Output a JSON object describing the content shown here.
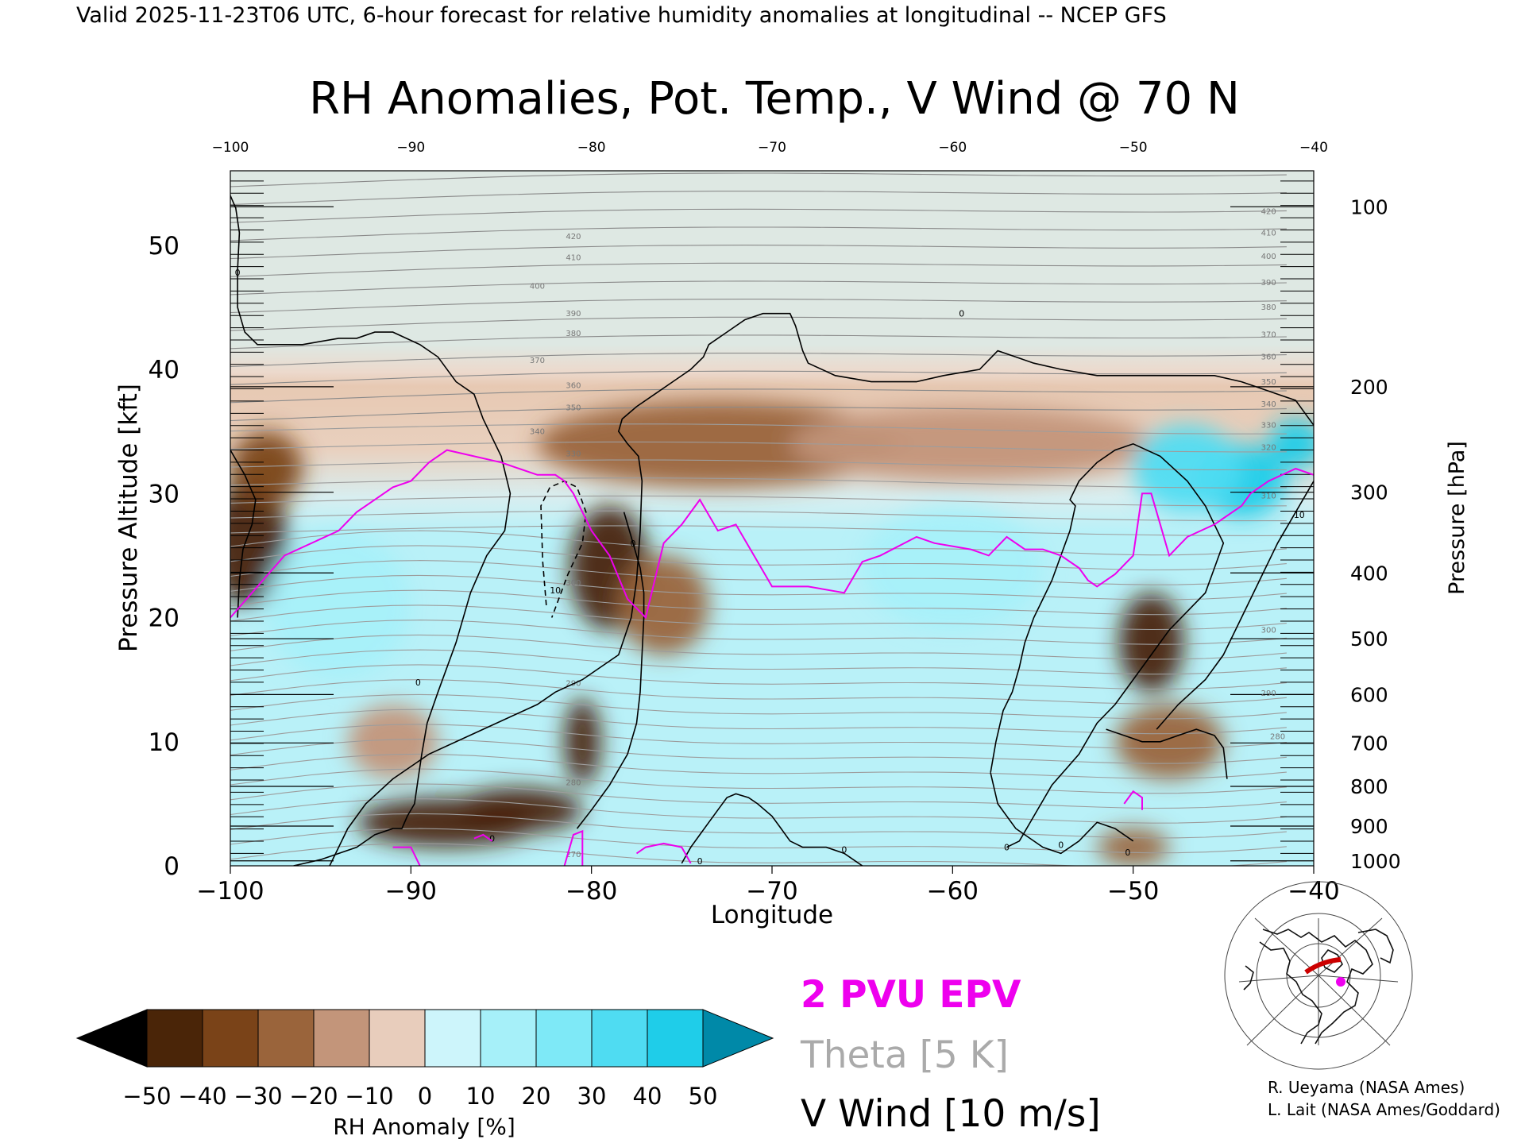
{
  "header": {
    "valid_line": "Valid 2025-11-23T06 UTC, 6-hour forecast for relative humidity anomalies at longitudinal -- NCEP GFS"
  },
  "chart_data": {
    "type": "heatmap",
    "title": "RH Anomalies, Pot. Temp., V Wind @ 70 N",
    "xlabel": "Longitude",
    "ylabel": "Pressure Altitude [kft]",
    "y2label": "Pressure [hPa]",
    "xlim": [
      -100,
      -40
    ],
    "ylim": [
      0,
      56
    ],
    "x_ticks": [
      -100,
      -90,
      -80,
      -70,
      -60,
      -50,
      -40
    ],
    "y_ticks": [
      0,
      10,
      20,
      30,
      40,
      50
    ],
    "pressure_ticks": [
      {
        "label": "100",
        "kft": 53.1
      },
      {
        "label": "200",
        "kft": 38.6
      },
      {
        "label": "300",
        "kft": 30.1
      },
      {
        "label": "400",
        "kft": 23.6
      },
      {
        "label": "500",
        "kft": 18.3
      },
      {
        "label": "600",
        "kft": 13.8
      },
      {
        "label": "700",
        "kft": 9.9
      },
      {
        "label": "800",
        "kft": 6.4
      },
      {
        "label": "900",
        "kft": 3.2
      },
      {
        "label": "1000",
        "kft": 0.4
      }
    ],
    "rh_blobs": [
      {
        "x": -99,
        "y": 26,
        "rx": 2.2,
        "ry": 5,
        "val": -50
      },
      {
        "x": -98,
        "y": 32,
        "rx": 2.0,
        "ry": 3,
        "val": -35
      },
      {
        "x": -88,
        "y": 3.5,
        "rx": 5.0,
        "ry": 2.0,
        "val": -50
      },
      {
        "x": -84,
        "y": 4.5,
        "rx": 3.5,
        "ry": 1.8,
        "val": -45
      },
      {
        "x": -80.5,
        "y": 10,
        "rx": 1.0,
        "ry": 3.5,
        "val": -50
      },
      {
        "x": -91,
        "y": 10,
        "rx": 2.5,
        "ry": 3.0,
        "val": -20
      },
      {
        "x": -79,
        "y": 24,
        "rx": 2.2,
        "ry": 5.0,
        "val": -45
      },
      {
        "x": -76,
        "y": 21,
        "rx": 2.5,
        "ry": 4.0,
        "val": -25
      },
      {
        "x": -73,
        "y": 34,
        "rx": 10,
        "ry": 3.5,
        "val": -25
      },
      {
        "x": -59,
        "y": 34,
        "rx": 10,
        "ry": 3.0,
        "val": -20
      },
      {
        "x": -49,
        "y": 18,
        "rx": 1.8,
        "ry": 4.0,
        "val": -50
      },
      {
        "x": -48,
        "y": 10,
        "rx": 3.0,
        "ry": 3.0,
        "val": -25
      },
      {
        "x": -50,
        "y": 1.5,
        "rx": 2.0,
        "ry": 1.5,
        "val": -25
      },
      {
        "x": -44,
        "y": 31,
        "rx": 2.5,
        "ry": 3.0,
        "val": 50
      },
      {
        "x": -47,
        "y": 32,
        "rx": 3.0,
        "ry": 3.5,
        "val": 35
      },
      {
        "x": -41,
        "y": 34,
        "rx": 1.5,
        "ry": 2.0,
        "val": 45
      },
      {
        "x": -60,
        "y": 24,
        "rx": 5.0,
        "ry": 5.0,
        "val": 15
      },
      {
        "x": -94,
        "y": 21,
        "rx": 4.0,
        "ry": 6.0,
        "val": 10
      }
    ],
    "theta_labels": [
      {
        "text": "420",
        "x": -81,
        "y": 50.5
      },
      {
        "text": "410",
        "x": -81,
        "y": 48.8
      },
      {
        "text": "400",
        "x": -83,
        "y": 46.5
      },
      {
        "text": "390",
        "x": -81,
        "y": 44.3
      },
      {
        "text": "380",
        "x": -81,
        "y": 42.7
      },
      {
        "text": "370",
        "x": -83,
        "y": 40.5
      },
      {
        "text": "360",
        "x": -81,
        "y": 38.5
      },
      {
        "text": "350",
        "x": -81,
        "y": 36.7
      },
      {
        "text": "340",
        "x": -83,
        "y": 34.8
      },
      {
        "text": "330",
        "x": -81,
        "y": 33.0
      },
      {
        "text": "300",
        "x": -81,
        "y": 22.6
      },
      {
        "text": "290",
        "x": -81,
        "y": 14.5
      },
      {
        "text": "420",
        "x": -42.5,
        "y": 52.5
      },
      {
        "text": "410",
        "x": -42.5,
        "y": 50.8
      },
      {
        "text": "400",
        "x": -42.5,
        "y": 48.9
      },
      {
        "text": "390",
        "x": -42.5,
        "y": 46.8
      },
      {
        "text": "380",
        "x": -42.5,
        "y": 44.8
      },
      {
        "text": "370",
        "x": -42.5,
        "y": 42.6
      },
      {
        "text": "360",
        "x": -42.5,
        "y": 40.8
      },
      {
        "text": "350",
        "x": -42.5,
        "y": 38.8
      },
      {
        "text": "340",
        "x": -42.5,
        "y": 37.0
      },
      {
        "text": "330",
        "x": -42.5,
        "y": 35.3
      },
      {
        "text": "320",
        "x": -42.5,
        "y": 33.5
      },
      {
        "text": "310",
        "x": -42.5,
        "y": 29.6
      },
      {
        "text": "300",
        "x": -42.5,
        "y": 18.8
      },
      {
        "text": "290",
        "x": -42.5,
        "y": 13.7
      },
      {
        "text": "280",
        "x": -42.0,
        "y": 10.2
      },
      {
        "text": "280",
        "x": -81,
        "y": 6.5
      },
      {
        "text": "270",
        "x": -81,
        "y": 0.7
      }
    ],
    "epv_2pvu": {
      "name": "2 PVU EPV",
      "color": "#ee00ee",
      "x": [
        -100,
        -97,
        -94,
        -93,
        -92,
        -91,
        -90,
        -89,
        -88,
        -85,
        -84,
        -83,
        -82,
        -81.5,
        -81,
        -80,
        -79,
        -78,
        -77,
        -76,
        -75,
        -74,
        -73,
        -72,
        -71,
        -70,
        -68,
        -66,
        -65,
        -64,
        -62,
        -61,
        -59,
        -58,
        -57,
        -56,
        -55,
        -54,
        -53,
        -52.5,
        -52,
        -51.5,
        -51,
        -50,
        -49.5,
        -49,
        -48.5,
        -48,
        -47,
        -45.5,
        -45,
        -44.5,
        -44,
        -43.5,
        -42.5,
        -41,
        -40
      ],
      "y": [
        20,
        25,
        27,
        28.5,
        29.5,
        30.5,
        31,
        32.5,
        33.5,
        32.5,
        32,
        31.5,
        31.5,
        31,
        30,
        27,
        25,
        21.5,
        20,
        26,
        27.5,
        29.5,
        27,
        27.5,
        25,
        22.5,
        22.5,
        22,
        24.5,
        25,
        26.5,
        26,
        25.5,
        25,
        26.5,
        25.5,
        25.5,
        25,
        24,
        23,
        22.5,
        23,
        23.5,
        25,
        30,
        30,
        27.5,
        25,
        26.5,
        27.5,
        28,
        28.5,
        29,
        30,
        31,
        32,
        31.5
      ]
    },
    "epv_2pvu_low": [
      {
        "x": [
          -91,
          -90.5,
          -90,
          -89.5
        ],
        "y": [
          1.5,
          1.5,
          1.5,
          0
        ]
      },
      {
        "x": [
          -86.5,
          -86,
          -85.5
        ],
        "y": [
          2.2,
          2.5,
          2.0
        ]
      },
      {
        "x": [
          -81.5,
          -81,
          -80.5,
          -80.5
        ],
        "y": [
          0,
          2.5,
          2.8,
          0
        ]
      },
      {
        "x": [
          -77.5,
          -77,
          -76,
          -75,
          -74.5
        ],
        "y": [
          1,
          1.5,
          1.8,
          1.5,
          0.2
        ]
      },
      {
        "x": [
          -50.5,
          -50,
          -49.5,
          -49.5
        ],
        "y": [
          5,
          6,
          5.5,
          4.5
        ]
      }
    ],
    "wind_contours": [
      {
        "style": "solid",
        "x": [
          -100,
          -99.7,
          -99.5,
          -99.6,
          -99.6,
          -99.2,
          -98.5,
          -97,
          -96,
          -94,
          -93,
          -92,
          -91,
          -89.5,
          -88.5,
          -87.5,
          -86.5,
          -86,
          -85,
          -84.5,
          -84.8,
          -85.8,
          -86.7,
          -87.5,
          -88.5,
          -89.1,
          -89.4,
          -89.6,
          -89.8,
          -90.2,
          -90.5,
          -91,
          -92,
          -93,
          -95,
          -96.5
        ],
        "y": [
          54,
          53,
          51,
          48,
          45,
          43,
          42,
          42,
          42,
          42.5,
          42.5,
          43,
          43,
          42,
          41,
          39,
          38,
          36,
          33,
          30,
          27,
          25,
          22,
          18,
          14,
          11.5,
          9,
          7,
          5,
          4,
          3,
          3,
          2.5,
          1.5,
          0.5,
          0
        ]
      },
      {
        "style": "solid",
        "x": [
          -100,
          -99.2,
          -98.6,
          -98.8,
          -99.3,
          -99.5,
          -99.6
        ],
        "y": [
          33.5,
          31.5,
          29.5,
          27.5,
          25.5,
          23,
          20
        ]
      },
      {
        "style": "solid",
        "x": [
          -94.5,
          -94,
          -93.5,
          -92.5,
          -91,
          -89,
          -86,
          -83,
          -82,
          -80.5,
          -79.5,
          -78.5,
          -77.8,
          -77.5,
          -77.3,
          -77.2,
          -77.4,
          -78,
          -78.5,
          -78.3,
          -77.5,
          -76.5,
          -75.5,
          -74.5,
          -73.8,
          -73.5,
          -72.5,
          -71.5,
          -70.5,
          -69.5,
          -69,
          -68.7,
          -68.5,
          -68.3,
          -68,
          -66.5,
          -64.5,
          -62,
          -60.5,
          -58.5,
          -57.5,
          -56.5,
          -55.5,
          -54,
          -52,
          -50,
          -48.5,
          -47,
          -45.5,
          -44,
          -43,
          -42,
          -41,
          -40.5,
          -40
        ],
        "y": [
          0,
          1.5,
          3,
          5,
          7,
          9,
          11,
          13,
          14,
          15,
          16,
          17,
          20,
          23,
          27,
          31,
          33,
          34,
          35,
          36,
          37,
          38,
          39,
          40,
          41,
          42,
          43,
          44,
          44.5,
          44.5,
          44.5,
          43.5,
          42.5,
          41.5,
          40.5,
          39.5,
          39,
          39,
          39.5,
          40,
          41.5,
          41,
          40.5,
          40,
          39.5,
          39.5,
          39.5,
          39.5,
          39.5,
          39,
          38.5,
          38,
          37.5,
          36.5,
          35.5
        ]
      },
      {
        "style": "solid",
        "x": [
          -80.8,
          -80,
          -79,
          -78,
          -77.5,
          -77.3,
          -77.2,
          -77.1,
          -77.1,
          -77.3,
          -77.8,
          -78.2
        ],
        "y": [
          3,
          4.5,
          6.5,
          9,
          11.5,
          14,
          17,
          20,
          22,
          24,
          26.5,
          28.5
        ]
      },
      {
        "style": "solid",
        "x": [
          -75,
          -74.5,
          -74,
          -73.5,
          -73,
          -72.5,
          -72,
          -71.3,
          -70.8,
          -70,
          -69.5,
          -69,
          -68.3,
          -67,
          -66,
          -65.5,
          -65
        ],
        "y": [
          0.2,
          1.5,
          2.5,
          3.5,
          4.5,
          5.5,
          5.8,
          5.5,
          5,
          4,
          3,
          2,
          1.5,
          1.5,
          1,
          0.5,
          0
        ]
      },
      {
        "style": "solid",
        "x": [
          -57,
          -56.3,
          -55.5,
          -54.5,
          -53,
          -52,
          -51,
          -50,
          -49,
          -48,
          -47,
          -46,
          -45.5,
          -45,
          -46,
          -47,
          -48.5,
          -50,
          -51,
          -52,
          -53,
          -53.5,
          -53.2,
          -53.5,
          -54,
          -54.5,
          -55,
          -55.5,
          -56,
          -56.3,
          -56.7,
          -57.2,
          -57.6,
          -57.9
        ],
        "y": [
          1.5,
          2,
          4,
          6.5,
          9,
          11.5,
          13,
          15,
          17,
          19,
          20.5,
          22,
          24,
          26,
          29,
          31,
          33,
          34,
          33.5,
          32.5,
          31,
          29.5,
          29,
          27,
          25,
          23,
          21.5,
          20,
          18,
          16,
          14,
          12.5,
          10,
          7.5
        ]
      },
      {
        "style": "solid",
        "x": [
          -48.7,
          -47.5,
          -46,
          -45,
          -44,
          -43,
          -42,
          -41,
          -40
        ],
        "y": [
          11,
          13,
          15,
          17,
          20,
          23,
          26,
          28.5,
          31
        ]
      },
      {
        "style": "solid",
        "x": [
          -51.5,
          -50.5,
          -49.5,
          -48.5,
          -47.5,
          -46.5,
          -45.5,
          -45,
          -44.8
        ],
        "y": [
          11,
          10.5,
          10,
          10,
          10.5,
          11,
          10.5,
          9.5,
          7
        ]
      },
      {
        "style": "solid",
        "x": [
          -57.9,
          -57.5,
          -56.5,
          -55,
          -54,
          -53,
          -52,
          -51,
          -50
        ],
        "y": [
          7.5,
          5,
          3,
          1.5,
          1,
          2,
          3.5,
          3,
          2
        ]
      },
      {
        "style": "dashed",
        "x": [
          -82.5,
          -82.7,
          -82.8,
          -82.3,
          -81.5,
          -80.8,
          -80.3,
          -80.5,
          -81.3,
          -82.2
        ],
        "y": [
          21,
          24.5,
          29,
          30.5,
          31,
          30.5,
          28.5,
          26,
          23.5,
          20
        ]
      }
    ],
    "wind_labels": [
      {
        "text": "0",
        "x": -99.6,
        "y": 47.8
      },
      {
        "text": "0",
        "x": -89.6,
        "y": 14.8
      },
      {
        "text": "0",
        "x": -77.7,
        "y": 26.0
      },
      {
        "text": "0",
        "x": -59.5,
        "y": 44.5
      },
      {
        "text": "0",
        "x": -85.5,
        "y": 2.2
      },
      {
        "text": "0",
        "x": -74.0,
        "y": 0.4
      },
      {
        "text": "0",
        "x": -66.0,
        "y": 1.3
      },
      {
        "text": "0",
        "x": -57.0,
        "y": 1.5
      },
      {
        "text": "0",
        "x": -54.0,
        "y": 1.7
      },
      {
        "text": "0",
        "x": -50.3,
        "y": 1.1
      },
      {
        "text": "10",
        "x": -82.0,
        "y": 22.2
      },
      {
        "text": "10",
        "x": -40.8,
        "y": 28.3
      }
    ],
    "colorbar": {
      "label": "RH Anomaly [%]",
      "ticks": [
        "-50",
        "-40",
        "-30",
        "-20",
        "-10",
        "0",
        "10",
        "20",
        "30",
        "40",
        "50"
      ],
      "colors": [
        "#000000",
        "#4a2508",
        "#7a4318",
        "#9a643b",
        "#c3957a",
        "#e8cdbc",
        "#cdf5fb",
        "#a6f0f9",
        "#7ee9f7",
        "#4fdcf2",
        "#1fcde9",
        "#0089a8",
        "#038e82"
      ]
    }
  },
  "legend": {
    "epv": "2 PVU EPV",
    "theta": "Theta [5 K]",
    "wind": "V Wind [10 m/s]",
    "epv_color": "#ee00ee",
    "theta_color": "#aaaaaa"
  },
  "credits": {
    "line1": "R. Ueyama (NASA Ames)",
    "line2": "L. Lait (NASA Ames/Goddard)"
  }
}
